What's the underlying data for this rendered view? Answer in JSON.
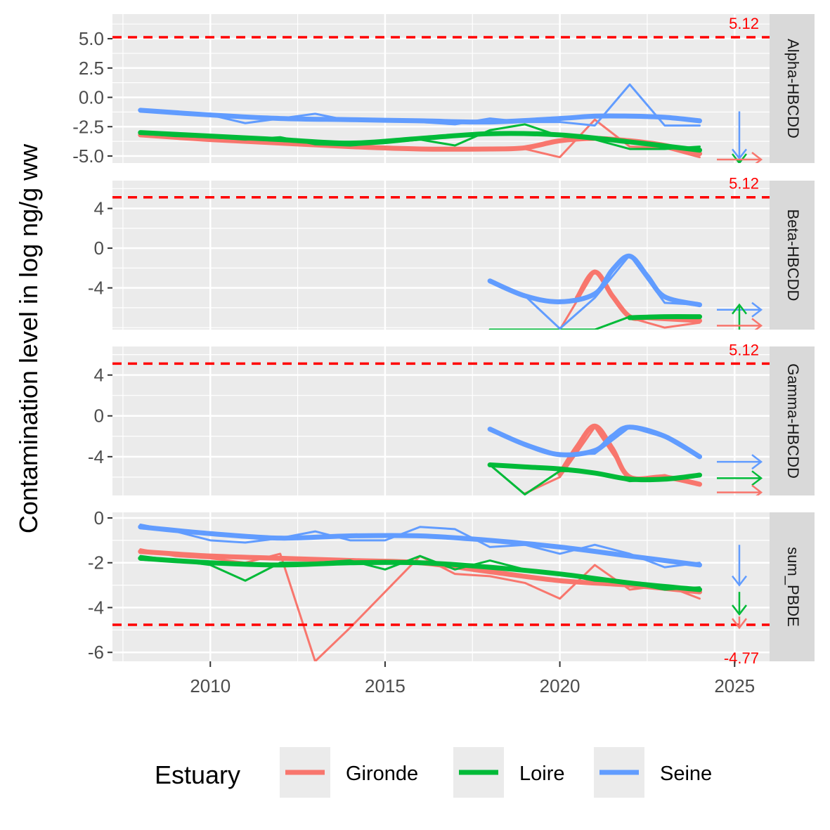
{
  "chart_data": {
    "type": "line",
    "ylabel": "Contamination level in log ng/g ww",
    "xlabel": "",
    "xlim": [
      2007.2,
      2026.0
    ],
    "x_ticks": [
      2010,
      2015,
      2020,
      2025
    ],
    "grid": true,
    "legend": {
      "title": "Estuary",
      "position": "bottom",
      "entries": [
        "Gironde",
        "Loire",
        "Seine"
      ]
    },
    "colors": {
      "Gironde": "#F8766D",
      "Loire": "#00BA38",
      "Seine": "#619CFF",
      "threshold": "#FF0000",
      "panel_bg": "#EBEBEB",
      "strip_bg": "#D9D9D9"
    },
    "panels": [
      {
        "label": "Alpha-HBCDD",
        "ylim": [
          -5.6,
          7.1
        ],
        "y_ticks": [
          5.0,
          2.5,
          0.0,
          -2.5,
          -5.0
        ],
        "y_tick_labels": [
          "5.0",
          "2.5",
          "0.0",
          "-2.5",
          "-5.0"
        ],
        "threshold": 5.12,
        "threshold_label": "5.12",
        "series": [
          {
            "name": "Gironde",
            "kind": "observed",
            "x": [
              2008,
              2009,
              2010,
              2011,
              2012,
              2013,
              2014,
              2015,
              2016,
              2017,
              2018,
              2019,
              2020,
              2021,
              2022,
              2023,
              2024
            ],
            "y": [
              -3.3,
              -3.5,
              -3.7,
              -3.8,
              -3.9,
              -4.0,
              -4.1,
              -4.3,
              -4.4,
              -4.5,
              -4.5,
              -4.4,
              -5.1,
              -1.9,
              -4.2,
              -4.3,
              -5.1
            ]
          },
          {
            "name": "Gironde",
            "kind": "trend",
            "x": [
              2008,
              2010,
              2012,
              2014,
              2016,
              2018,
              2019,
              2020,
              2021,
              2022,
              2023,
              2024
            ],
            "y": [
              -3.2,
              -3.6,
              -3.9,
              -4.2,
              -4.4,
              -4.4,
              -4.3,
              -3.7,
              -3.5,
              -3.7,
              -4.1,
              -4.8
            ]
          },
          {
            "name": "Loire",
            "kind": "observed",
            "x": [
              2008,
              2009,
              2010,
              2011,
              2012,
              2013,
              2014,
              2015,
              2016,
              2017,
              2018,
              2019,
              2020,
              2021,
              2022,
              2023,
              2024
            ],
            "y": [
              -3.1,
              -3.3,
              -3.4,
              -3.6,
              -3.4,
              -4.0,
              -4.1,
              -3.9,
              -3.6,
              -4.1,
              -2.8,
              -2.3,
              -3.3,
              -3.6,
              -4.4,
              -4.4,
              -4.2
            ]
          },
          {
            "name": "Loire",
            "kind": "trend",
            "x": [
              2008,
              2010,
              2012,
              2014,
              2016,
              2018,
              2020,
              2022,
              2024
            ],
            "y": [
              -3.0,
              -3.3,
              -3.6,
              -3.9,
              -3.5,
              -3.1,
              -3.2,
              -3.8,
              -4.5
            ]
          },
          {
            "name": "Seine",
            "kind": "observed",
            "x": [
              2008,
              2009,
              2010,
              2011,
              2012,
              2013,
              2014,
              2015,
              2016,
              2017,
              2018,
              2019,
              2020,
              2021,
              2022,
              2023,
              2024
            ],
            "y": [
              -1.2,
              -1.4,
              -1.5,
              -2.2,
              -1.8,
              -1.4,
              -2.0,
              -2.0,
              -2.1,
              -2.3,
              -1.8,
              -2.1,
              -2.1,
              -2.4,
              1.1,
              -2.4,
              -2.4
            ]
          },
          {
            "name": "Seine",
            "kind": "trend",
            "x": [
              2008,
              2010,
              2012,
              2014,
              2016,
              2018,
              2020,
              2021,
              2022,
              2023,
              2024
            ],
            "y": [
              -1.1,
              -1.5,
              -1.8,
              -1.9,
              -2.0,
              -2.1,
              -1.8,
              -1.6,
              -1.6,
              -1.7,
              -2.0
            ]
          }
        ],
        "arrows": [
          {
            "name": "Seine",
            "direction": "down",
            "from": -1.2,
            "to": -5.2
          },
          {
            "name": "Loire",
            "direction": "down",
            "from": -5.3,
            "to": -5.6
          },
          {
            "name": "Gironde",
            "direction": "right",
            "at": -5.3
          }
        ]
      },
      {
        "label": "Beta-HBCDD",
        "ylim": [
          -8.2,
          6.8
        ],
        "y_ticks": [
          4,
          0,
          -4
        ],
        "y_tick_labels": [
          "4",
          "0",
          "-4"
        ],
        "threshold": 5.12,
        "threshold_label": "5.12",
        "series": [
          {
            "name": "Gironde",
            "kind": "observed",
            "x": [
              2018,
              2019,
              2020,
              2021,
              2022,
              2023,
              2024
            ],
            "y": [
              -8.2,
              -8.2,
              -8.2,
              -2.3,
              -7.0,
              -8.0,
              -7.5
            ]
          },
          {
            "name": "Gironde",
            "kind": "trend",
            "x": [
              2020.5,
              2021,
              2021.5,
              2022,
              2022.5,
              2023,
              2024
            ],
            "y": [
              -5.0,
              -2.4,
              -4.8,
              -6.9,
              -7.0,
              -7.1,
              -7.3
            ]
          },
          {
            "name": "Loire",
            "kind": "observed",
            "x": [
              2018,
              2019,
              2020,
              2021,
              2022,
              2023,
              2024
            ],
            "y": [
              -8.2,
              -8.2,
              -8.2,
              -8.2,
              -6.9,
              -6.9,
              -6.9
            ]
          },
          {
            "name": "Loire",
            "kind": "trend",
            "x": [
              2022,
              2023,
              2024
            ],
            "y": [
              -7.0,
              -6.9,
              -6.9
            ]
          },
          {
            "name": "Seine",
            "kind": "observed",
            "x": [
              2018,
              2019,
              2020,
              2021,
              2022,
              2023,
              2024
            ],
            "y": [
              -3.4,
              -4.8,
              -8.1,
              -5.0,
              -0.7,
              -5.5,
              -5.7
            ]
          },
          {
            "name": "Seine",
            "kind": "trend",
            "x": [
              2018,
              2019,
              2020,
              2021,
              2021.5,
              2022,
              2022.5,
              2023,
              2024
            ],
            "y": [
              -3.3,
              -4.8,
              -5.4,
              -4.6,
              -2.2,
              -0.8,
              -2.8,
              -4.9,
              -5.7
            ]
          }
        ],
        "arrows": [
          {
            "name": "Seine",
            "direction": "right",
            "at": -6.2
          },
          {
            "name": "Loire",
            "direction": "up",
            "from": -8.2,
            "to": -5.7
          },
          {
            "name": "Gironde",
            "direction": "right",
            "at": -7.8
          }
        ]
      },
      {
        "label": "Gamma-HBCDD",
        "ylim": [
          -7.8,
          6.8
        ],
        "y_ticks": [
          4,
          0,
          -4
        ],
        "y_tick_labels": [
          "4",
          "0",
          "-4"
        ],
        "threshold": 5.12,
        "threshold_label": "5.12",
        "series": [
          {
            "name": "Gironde",
            "kind": "observed",
            "x": [
              2019,
              2020,
              2021,
              2022,
              2023,
              2024
            ],
            "y": [
              -7.6,
              -6.0,
              -1.1,
              -6.2,
              -5.8,
              -6.8
            ]
          },
          {
            "name": "Gironde",
            "kind": "trend",
            "x": [
              2020,
              2020.5,
              2021,
              2021.5,
              2022,
              2023,
              2024
            ],
            "y": [
              -5.7,
              -3.0,
              -1.0,
              -3.2,
              -6.0,
              -6.0,
              -6.7
            ]
          },
          {
            "name": "Loire",
            "kind": "observed",
            "x": [
              2018,
              2019,
              2020,
              2021,
              2022,
              2023,
              2024
            ],
            "y": [
              -4.8,
              -7.7,
              -5.4,
              -5.5,
              -6.4,
              -6.2,
              -5.8
            ]
          },
          {
            "name": "Loire",
            "kind": "trend",
            "x": [
              2018,
              2019,
              2020,
              2021,
              2022,
              2023,
              2024
            ],
            "y": [
              -4.8,
              -5.0,
              -5.2,
              -5.6,
              -6.2,
              -6.2,
              -5.8
            ]
          },
          {
            "name": "Seine",
            "kind": "observed",
            "x": [
              2018,
              2019,
              2020,
              2021,
              2022,
              2023,
              2024
            ],
            "y": [
              -1.3,
              -2.7,
              -3.8,
              -3.7,
              -1.1,
              -2.1,
              -4.1
            ]
          },
          {
            "name": "Seine",
            "kind": "trend",
            "x": [
              2018,
              2019,
              2020,
              2021,
              2021.5,
              2022,
              2023,
              2024
            ],
            "y": [
              -1.3,
              -2.8,
              -3.8,
              -3.4,
              -2.0,
              -1.1,
              -2.0,
              -4.0
            ]
          }
        ],
        "arrows": [
          {
            "name": "Seine",
            "direction": "right",
            "at": -4.5
          },
          {
            "name": "Loire",
            "direction": "right",
            "at": -6.1
          },
          {
            "name": "Gironde",
            "direction": "right",
            "at": -7.5
          }
        ]
      },
      {
        "label": "sum_PBDE",
        "ylim": [
          -6.4,
          0.25
        ],
        "y_ticks": [
          0,
          -2,
          -4,
          -6
        ],
        "y_tick_labels": [
          "0",
          "-2",
          "-4",
          "-6"
        ],
        "threshold": -4.77,
        "threshold_label": "-4.77",
        "series": [
          {
            "name": "Gironde",
            "kind": "observed",
            "x": [
              2008,
              2009,
              2010,
              2011,
              2012,
              2013,
              2014,
              2015,
              2016,
              2017,
              2018,
              2019,
              2020,
              2021,
              2022,
              2023,
              2024
            ],
            "y": [
              -1.4,
              -1.7,
              -1.8,
              -2.0,
              -1.6,
              -6.4,
              -4.9,
              -3.3,
              -1.7,
              -2.5,
              -2.6,
              -2.9,
              -3.6,
              -2.1,
              -3.2,
              -3.0,
              -3.6
            ]
          },
          {
            "name": "Gironde",
            "kind": "trend",
            "x": [
              2008,
              2010,
              2012,
              2014,
              2016,
              2018,
              2020,
              2022,
              2024
            ],
            "y": [
              -1.5,
              -1.7,
              -1.8,
              -1.9,
              -2.0,
              -2.4,
              -2.8,
              -3.0,
              -3.3
            ]
          },
          {
            "name": "Loire",
            "kind": "observed",
            "x": [
              2008,
              2009,
              2010,
              2011,
              2012,
              2013,
              2014,
              2015,
              2016,
              2017,
              2018,
              2019,
              2020,
              2021,
              2022,
              2023,
              2024
            ],
            "y": [
              -1.7,
              -1.9,
              -2.1,
              -2.8,
              -2.0,
              -2.0,
              -1.9,
              -2.3,
              -1.7,
              -2.3,
              -1.9,
              -2.3,
              -2.5,
              -2.8,
              -2.9,
              -3.2,
              -3.1
            ]
          },
          {
            "name": "Loire",
            "kind": "trend",
            "x": [
              2008,
              2010,
              2012,
              2014,
              2016,
              2018,
              2020,
              2022,
              2024
            ],
            "y": [
              -1.8,
              -2.0,
              -2.1,
              -2.0,
              -2.0,
              -2.2,
              -2.5,
              -2.9,
              -3.2
            ]
          },
          {
            "name": "Seine",
            "kind": "observed",
            "x": [
              2008,
              2009,
              2010,
              2011,
              2012,
              2013,
              2014,
              2015,
              2016,
              2017,
              2018,
              2019,
              2020,
              2021,
              2022,
              2023,
              2024
            ],
            "y": [
              -0.3,
              -0.6,
              -1.0,
              -1.1,
              -0.9,
              -0.6,
              -1.0,
              -1.0,
              -0.4,
              -0.5,
              -1.3,
              -1.2,
              -1.6,
              -1.2,
              -1.6,
              -2.2,
              -2.0
            ]
          },
          {
            "name": "Seine",
            "kind": "trend",
            "x": [
              2008,
              2010,
              2012,
              2014,
              2016,
              2018,
              2020,
              2022,
              2024
            ],
            "y": [
              -0.4,
              -0.7,
              -0.9,
              -0.8,
              -0.8,
              -1.0,
              -1.3,
              -1.7,
              -2.1
            ]
          }
        ],
        "arrows": [
          {
            "name": "Seine",
            "direction": "down",
            "from": -1.2,
            "to": -3.0
          },
          {
            "name": "Loire",
            "direction": "down",
            "from": -3.3,
            "to": -4.3
          },
          {
            "name": "Gironde",
            "direction": "down",
            "from": -4.4,
            "to": -4.9
          }
        ]
      }
    ]
  }
}
